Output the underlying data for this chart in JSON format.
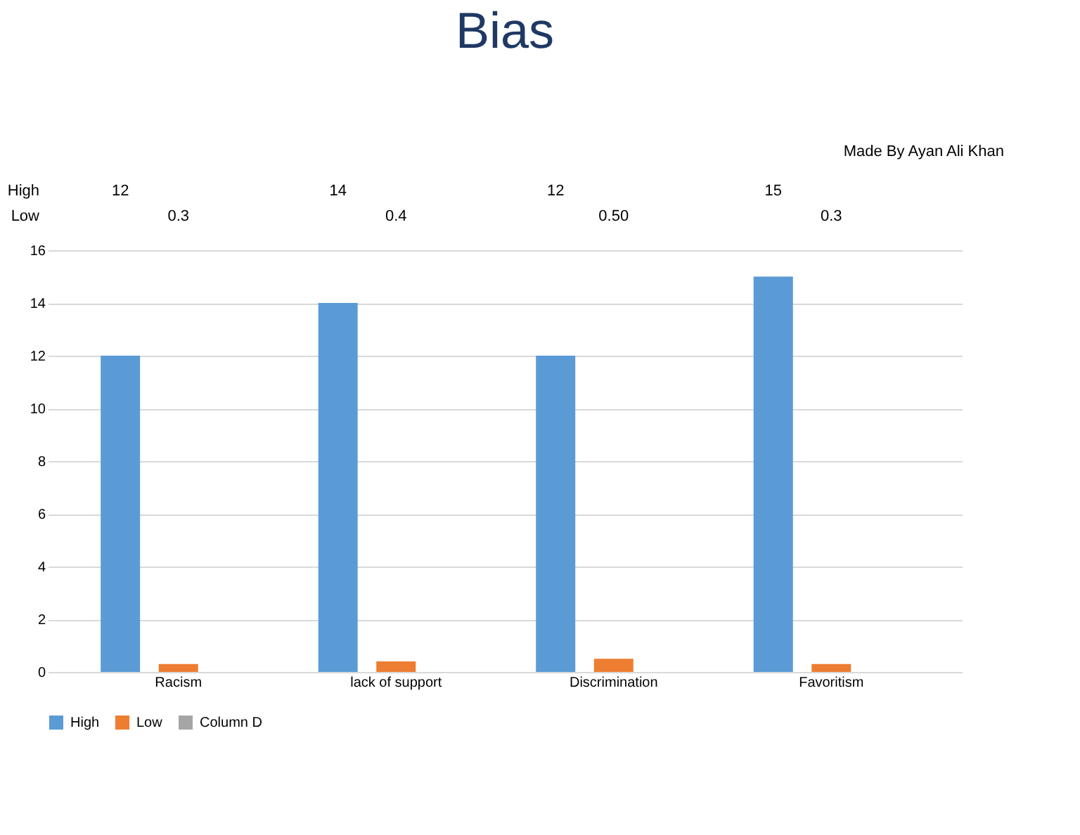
{
  "chart_data": {
    "type": "bar",
    "title": "Bias",
    "annotations": [
      "Made By Ayan Ali Khan"
    ],
    "categories": [
      "Racism",
      "lack of support",
      "Discrimination",
      "Favoritism"
    ],
    "series": [
      {
        "name": "High",
        "color": "#5b9bd5",
        "values": [
          12,
          14,
          12,
          15
        ],
        "value_labels": [
          "12",
          "14",
          "12",
          "15"
        ]
      },
      {
        "name": "Low",
        "color": "#ed7d31",
        "values": [
          0.3,
          0.4,
          0.5,
          0.3
        ],
        "value_labels": [
          "0.3",
          "0.4",
          "0.50",
          "0.3"
        ]
      },
      {
        "name": "Column D",
        "color": "#a5a5a5",
        "values": [
          null,
          null,
          null,
          null
        ]
      }
    ],
    "ylim": [
      0,
      16
    ],
    "yticks": [
      0,
      2,
      4,
      6,
      8,
      10,
      12,
      14,
      16
    ],
    "grid": "y",
    "legend": "bottom"
  }
}
